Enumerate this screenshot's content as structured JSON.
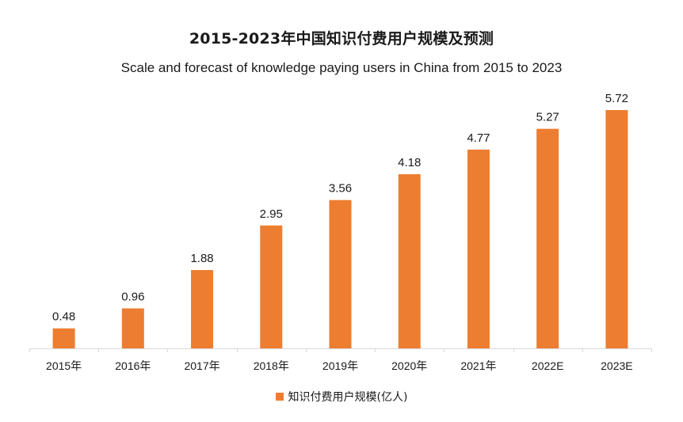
{
  "colors": {
    "bar": "#ED7D31",
    "axis": "#D9D9D9",
    "text": "#1A1A1A"
  },
  "chart_data": {
    "type": "bar",
    "title": "2015-2023年中国知识付费用户规模及预测",
    "subtitle": "Scale and forecast of knowledge paying users in China from 2015 to 2023",
    "categories": [
      "2015年",
      "2016年",
      "2017年",
      "2018年",
      "2019年",
      "2020年",
      "2021年",
      "2022E",
      "2023E"
    ],
    "series": [
      {
        "name": "知识付费用户规模(亿人)",
        "values": [
          0.48,
          0.96,
          1.88,
          2.95,
          3.56,
          4.18,
          4.77,
          5.27,
          5.72
        ],
        "labels": [
          "0.48",
          "0.96",
          "1.88",
          "2.95",
          "3.56",
          "4.18",
          "4.77",
          "5.27",
          "5.72"
        ]
      }
    ],
    "ylim": [
      0,
      5.72
    ],
    "grid": false,
    "legend": "bottom"
  }
}
